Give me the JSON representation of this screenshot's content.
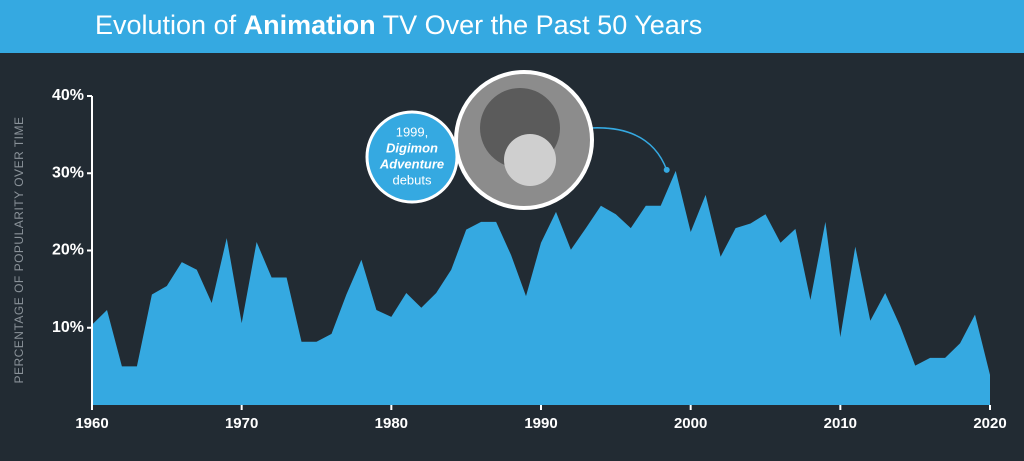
{
  "chart_data": {
    "type": "area",
    "title": [
      "Evolution of ",
      "Animation",
      " TV Over the Past 50 Years"
    ],
    "ylabel": "PERCENTAGE OF POPULARITY OVER TIME",
    "x": [
      1960,
      1961,
      1962,
      1963,
      1964,
      1965,
      1966,
      1967,
      1968,
      1969,
      1970,
      1971,
      1972,
      1973,
      1974,
      1975,
      1976,
      1977,
      1978,
      1979,
      1980,
      1981,
      1982,
      1983,
      1984,
      1985,
      1986,
      1987,
      1988,
      1989,
      1990,
      1991,
      1992,
      1993,
      1994,
      1995,
      1996,
      1997,
      1998,
      1999,
      2000,
      2001,
      2002,
      2003,
      2004,
      2005,
      2006,
      2007,
      2008,
      2009,
      2010,
      2011,
      2012,
      2013,
      2014,
      2015,
      2016,
      2017,
      2018,
      2019,
      2020
    ],
    "series": [
      {
        "name": "Animation",
        "color": "#35a9e1",
        "values": [
          10.4,
          12.3,
          5,
          5,
          14.3,
          15.4,
          18.5,
          17.5,
          13.2,
          21.6,
          10.6,
          21.1,
          16.5,
          16.5,
          8.2,
          8.2,
          9.2,
          14.3,
          18.8,
          12.3,
          11.4,
          14.5,
          12.6,
          14.5,
          17.5,
          22.7,
          23.7,
          23.7,
          19.4,
          14.1,
          21,
          25,
          20.1,
          22.9,
          25.8,
          24.7,
          22.9,
          25.8,
          25.8,
          30.3,
          22.4,
          27.2,
          19.2,
          22.9,
          23.5,
          24.7,
          21,
          22.8,
          13.6,
          23.7,
          8.8,
          20.5,
          10.9,
          14.5,
          10.2,
          5.1,
          6.1,
          6.1,
          8,
          11.7,
          3.9
        ]
      }
    ],
    "xlim": [
      1960,
      2020
    ],
    "xticks": [
      1960,
      1970,
      1980,
      1990,
      2000,
      2010,
      2020
    ],
    "ylim": [
      0,
      40
    ],
    "yticks": [
      {
        "value": 10,
        "label": "10%"
      },
      {
        "value": 20,
        "label": "20%"
      },
      {
        "value": 30,
        "label": "30%"
      },
      {
        "value": 40,
        "label": "40%"
      }
    ],
    "annotation": {
      "lines": [
        "1999,",
        "Digimon",
        "Adventure",
        "debuts"
      ]
    }
  }
}
